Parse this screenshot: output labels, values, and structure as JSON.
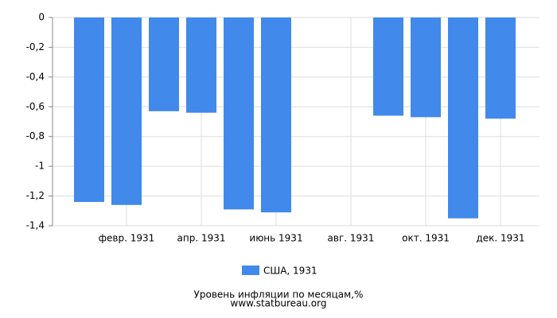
{
  "chart_data": {
    "type": "bar",
    "categories": [
      null,
      "февр. 1931",
      null,
      "апр. 1931",
      null,
      "июнь 1931",
      null,
      "авг. 1931",
      null,
      "окт. 1931",
      null,
      "дек. 1931"
    ],
    "series": [
      {
        "name": "США, 1931",
        "color": "#4189ea",
        "values": [
          -1.24,
          -1.26,
          -0.63,
          -0.64,
          -1.29,
          -1.31,
          null,
          null,
          -0.66,
          -0.67,
          -1.35,
          -0.68
        ]
      }
    ],
    "ylim": [
      -1.4,
      0
    ],
    "yticks": [
      0,
      {
        "value": -0.2,
        "label": "-0,2"
      },
      {
        "value": -0.4,
        "label": "-0,4"
      },
      {
        "value": -0.6,
        "label": "-0,6"
      },
      {
        "value": -0.8,
        "label": "-0,8"
      },
      -1,
      {
        "value": -1.2,
        "label": "-1,2"
      },
      {
        "value": -1.4,
        "label": "-1,4"
      }
    ],
    "grid": true,
    "title": "Уровень инфляции по месяцам,%",
    "source": "www.statbureau.org"
  }
}
